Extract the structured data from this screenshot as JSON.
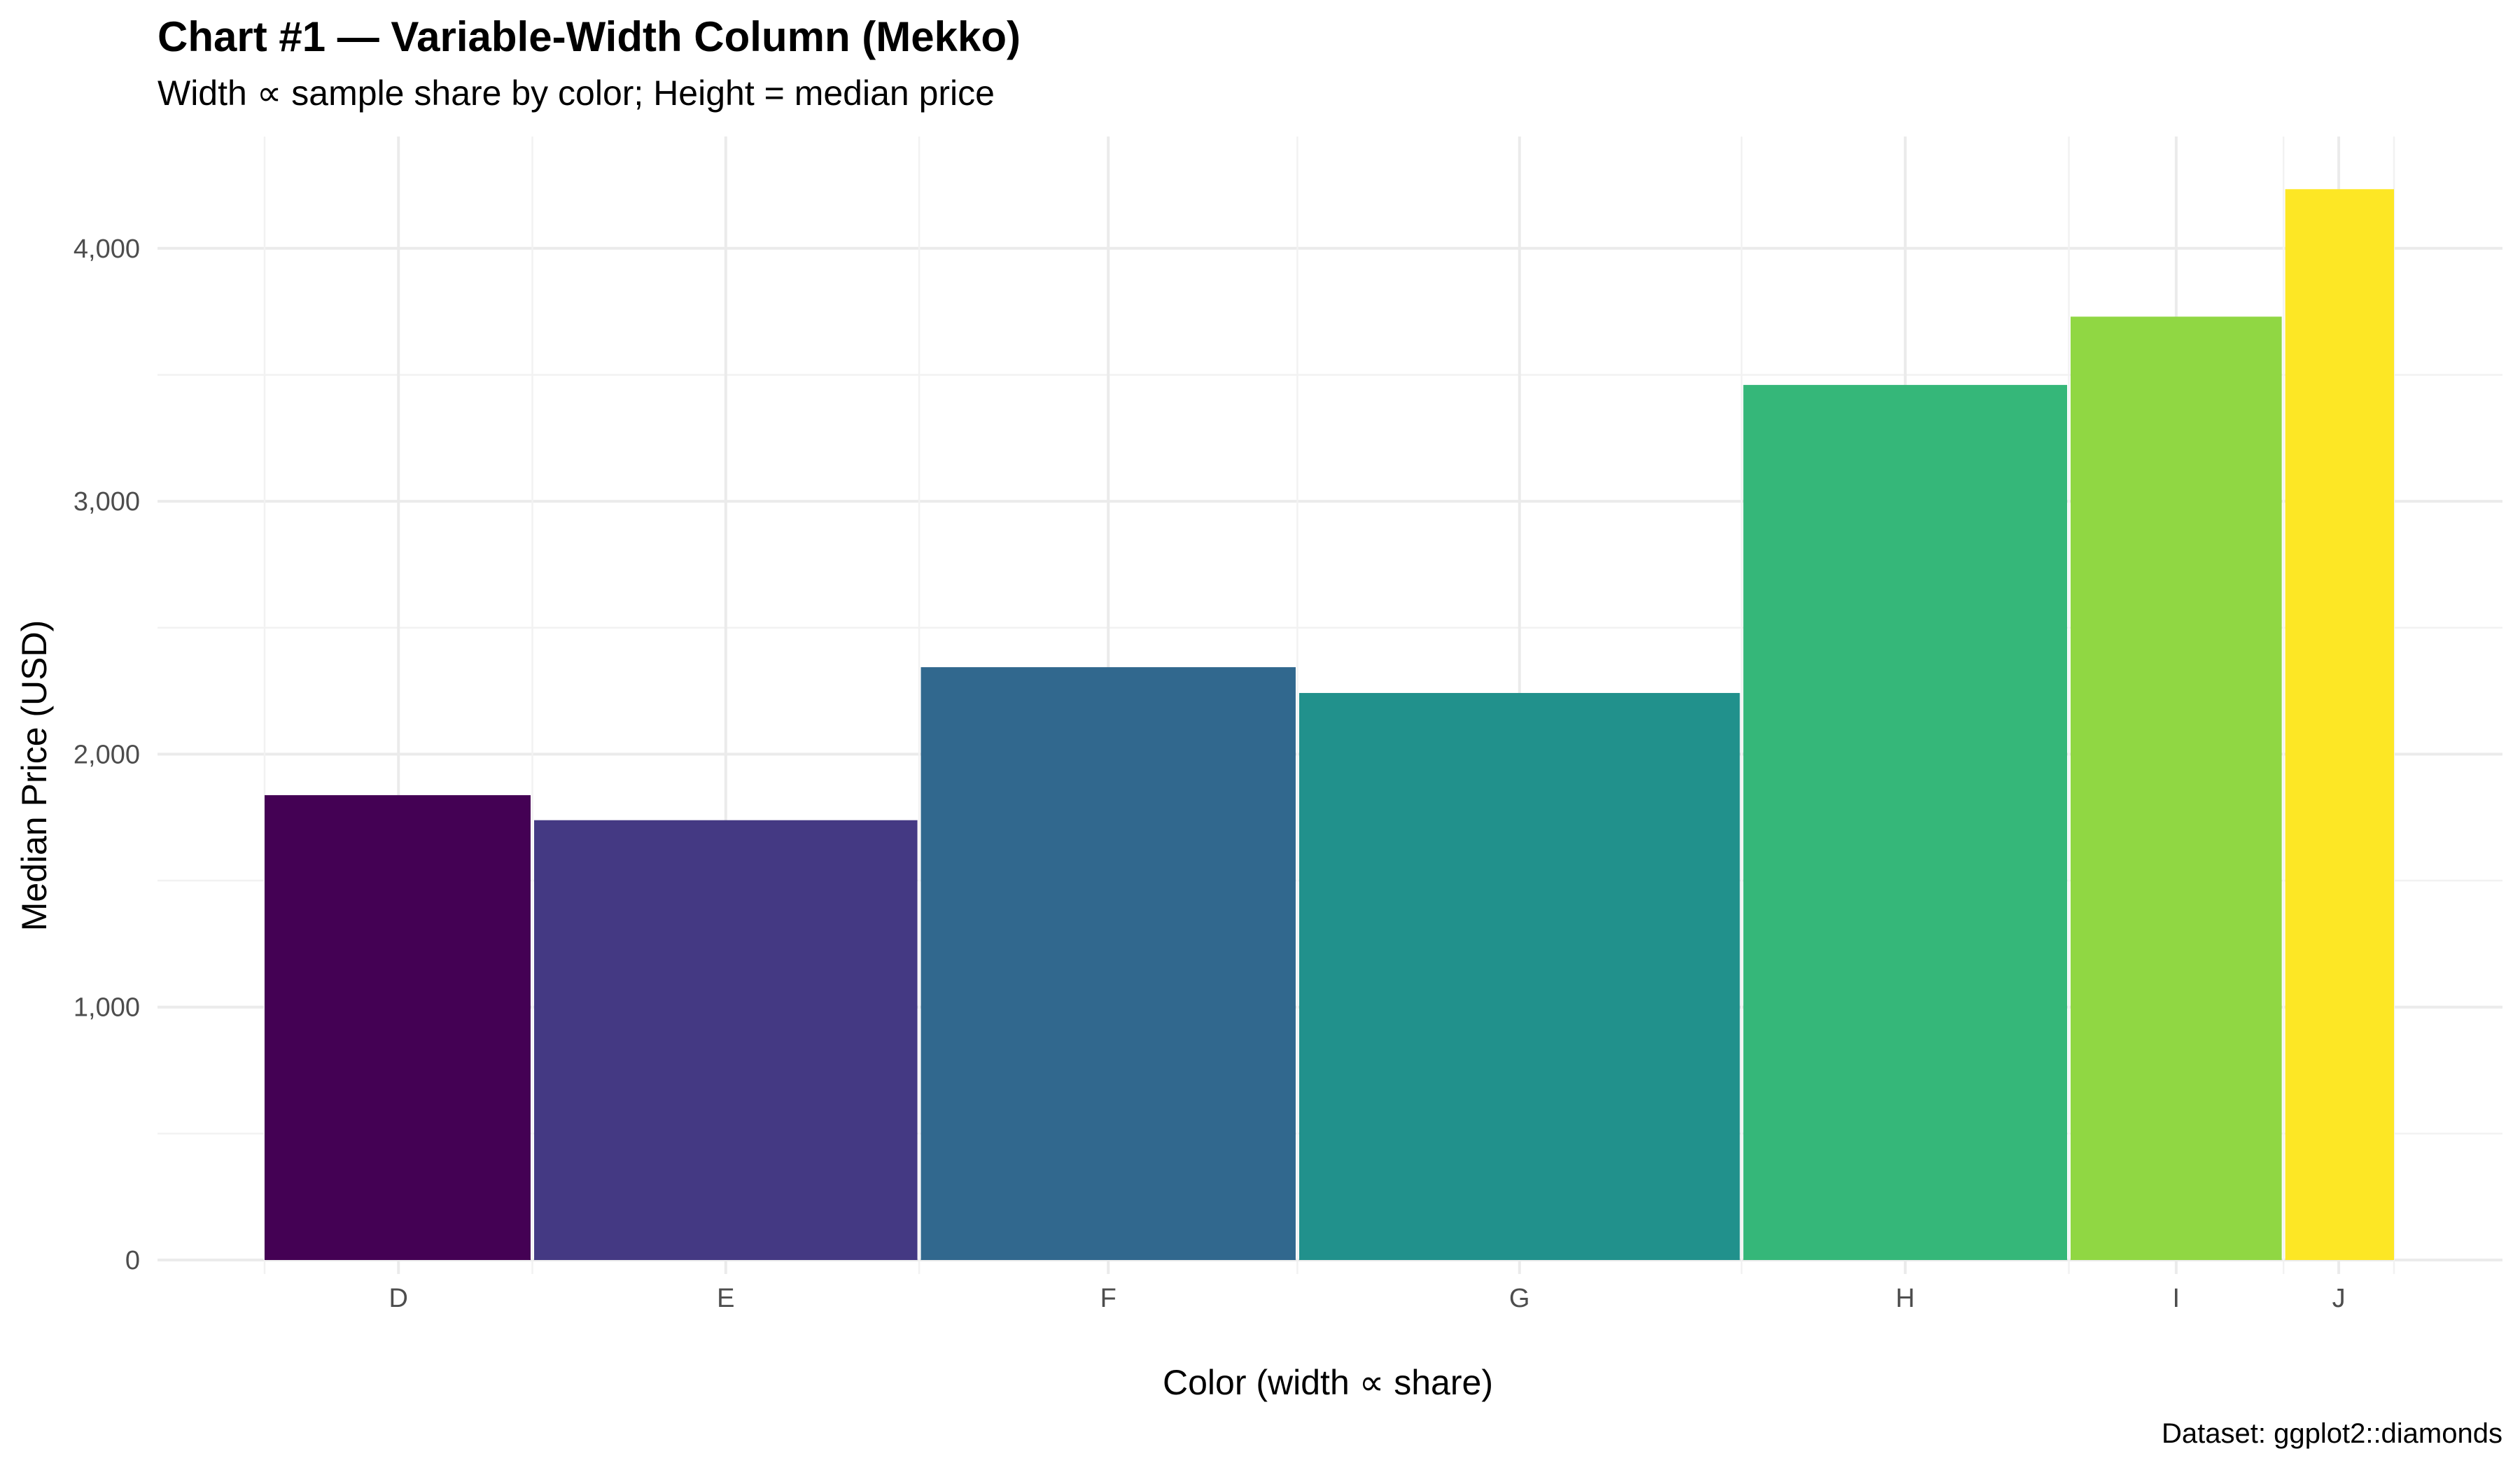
{
  "chart_data": {
    "type": "bar",
    "variant": "variable-width column (mekko)",
    "title": "Chart #1 — Variable-Width Column (Mekko)",
    "subtitle": "Width ∝ sample share by color; Height = median price",
    "xlabel": "Color (width ∝ share)",
    "ylabel": "Median Price (USD)",
    "caption": "Dataset: ggplot2::diamonds",
    "categories": [
      "D",
      "E",
      "F",
      "G",
      "H",
      "I",
      "J"
    ],
    "values": [
      1838,
      1739,
      2344,
      2242,
      3460,
      3730,
      4234
    ],
    "share_pct": [
      12.6,
      18.2,
      17.8,
      20.9,
      15.4,
      10.1,
      5.2
    ],
    "colors": [
      "#440154",
      "#443983",
      "#31688E",
      "#21918C",
      "#35B779",
      "#90D743",
      "#FDE725"
    ],
    "ylim": [
      0,
      4400
    ],
    "yticks": [
      0,
      1000,
      2000,
      3000,
      4000
    ],
    "ytick_labels": [
      "0",
      "1,000",
      "2,000",
      "3,000",
      "4,000"
    ],
    "grid": true,
    "legend": "none"
  }
}
